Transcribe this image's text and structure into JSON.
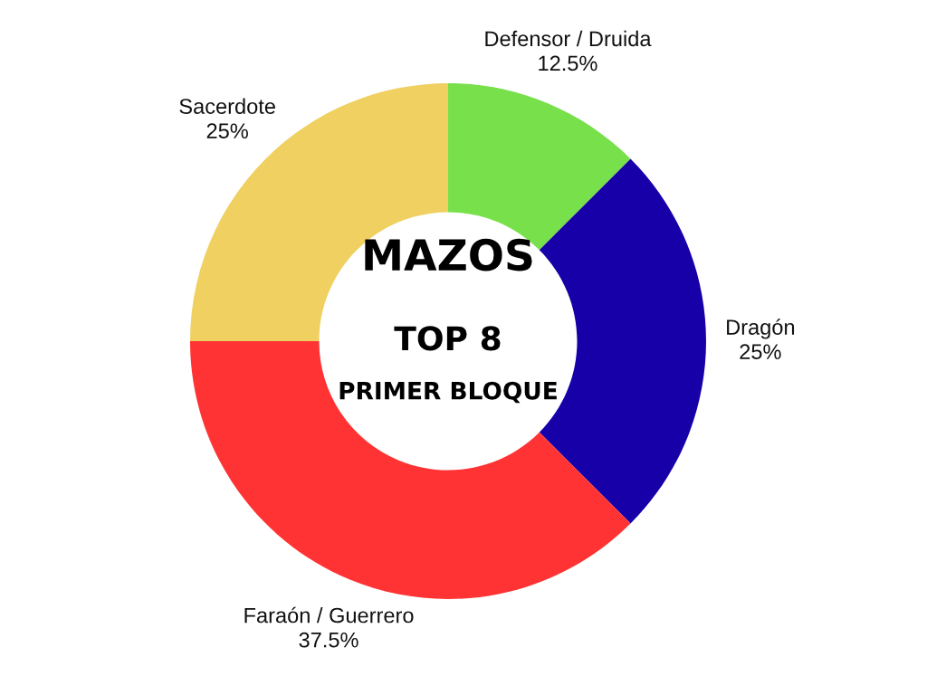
{
  "chart_data": {
    "type": "donut",
    "title": "MAZOS",
    "subtitle": "TOP 8",
    "annotations": [
      "PRIMER BLOQUE"
    ],
    "categories": [
      "Defensor / Druida",
      "Dragón",
      "Faraón / Guerrero",
      "Sacerdote"
    ],
    "values": [
      12.5,
      25,
      37.5,
      25
    ],
    "colors": [
      "#77e04a",
      "#1800a8",
      "#ff3333",
      "#efd060"
    ],
    "value_labels": [
      "12.5%",
      "25%",
      "37.5%",
      "25%"
    ]
  }
}
